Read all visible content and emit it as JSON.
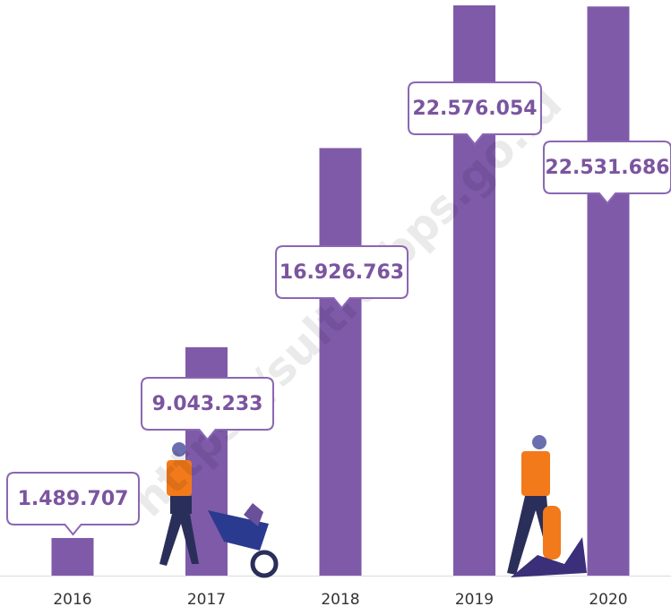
{
  "chart_data": {
    "type": "bar",
    "categories": [
      "2016",
      "2017",
      "2018",
      "2019",
      "2020"
    ],
    "values": [
      1489707,
      9043233,
      16926763,
      22576054,
      22531686
    ],
    "value_labels": [
      "1.489.707",
      "9.043.233",
      "16.926.763",
      "22.576.054",
      "22.531.686"
    ],
    "color": "#7f5aa9",
    "watermark": "https://sultra.bps.go.id"
  }
}
